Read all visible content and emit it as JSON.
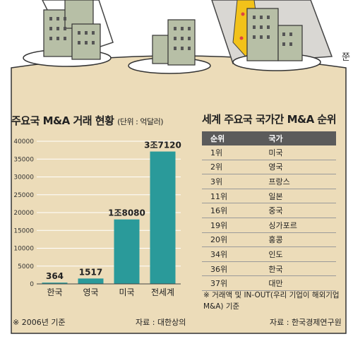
{
  "left_title": "주요국 M&A 거래 현황",
  "left_unit": "(단위 : 억달러)",
  "right_title": "세계 주요국 국가간 M&A 순위",
  "table": {
    "headers": [
      "순위",
      "국가"
    ],
    "rows": [
      [
        "1위",
        "미국"
      ],
      [
        "2위",
        "영국"
      ],
      [
        "3위",
        "프랑스"
      ],
      [
        "11위",
        "일본"
      ],
      [
        "16위",
        "중국"
      ],
      [
        "19위",
        "싱가포르"
      ],
      [
        "20위",
        "홍콩"
      ],
      [
        "34위",
        "인도"
      ],
      [
        "36위",
        "한국"
      ],
      [
        "37위",
        "대만"
      ]
    ]
  },
  "note_left": "※ 2006년 기준",
  "source_left": "자료 : 대한상의",
  "note_right": "※ 거래액 및 IN-OUT(우리 기업이 해외기업 M&A) 기준",
  "source_right": "자료 : 한국경제연구원",
  "side_text": "쭌",
  "colors": {
    "bar": "#2a9a9a",
    "tablecloth": "#ecdcb9",
    "header": "#5b5b5b",
    "buildings": "#b7bfa6",
    "tie": "#f2c21a"
  },
  "chart_data": {
    "type": "bar",
    "categories": [
      "한국",
      "영국",
      "미국",
      "전세계"
    ],
    "values": [
      364,
      1517,
      18080,
      37120
    ],
    "data_labels": [
      "364",
      "1517",
      "1조8080",
      "3조7120"
    ],
    "ylim": [
      0,
      40000
    ],
    "yticks": [
      0,
      5000,
      10000,
      15000,
      20000,
      25000,
      30000,
      35000,
      40000
    ],
    "grid": true
  }
}
